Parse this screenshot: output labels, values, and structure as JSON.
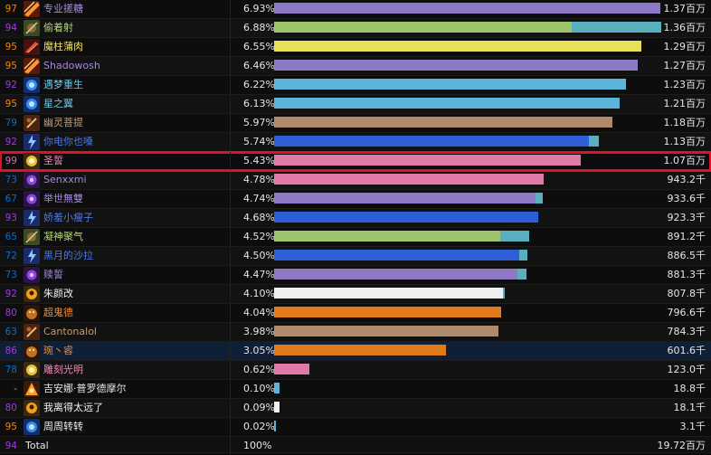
{
  "colors": {
    "rank_legendary": "#ff8000",
    "rank_epic": "#a335ee",
    "rank_rare": "#0070dd",
    "rank_astounding": "#e268a8",
    "rank_common": "#aaaaaa"
  },
  "rows": [
    {
      "rank": "97",
      "name": "专业搓糖",
      "pct": "6.93%",
      "value": "1.37百万",
      "bar_frac": 0.988,
      "bar2_frac": 0,
      "bar_color": "#8d79c4",
      "bar2_color": "",
      "name_color": "#a688e0",
      "rank_color": "#ff8000",
      "icon": "fire-mage-icon"
    },
    {
      "rank": "94",
      "name": "偷着射",
      "pct": "6.88%",
      "value": "1.36百万",
      "bar_frac": 0.762,
      "bar2_frac": 0.23,
      "bar_color": "#9dc46a",
      "bar2_color": "#5aafbf",
      "name_color": "#b6d57a",
      "rank_color": "#a335ee",
      "icon": "hunter-icon"
    },
    {
      "rank": "95",
      "name": "魔柱蒲肉",
      "pct": "6.55%",
      "value": "1.29百万",
      "bar_frac": 0.94,
      "bar2_frac": 0,
      "bar_color": "#e6e05a",
      "bar2_color": "",
      "name_color": "#f0e060",
      "rank_color": "#ff8000",
      "icon": "rogue-icon"
    },
    {
      "rank": "95",
      "name": "Shadowosh",
      "pct": "6.46%",
      "value": "1.27百万",
      "bar_frac": 0.93,
      "bar2_frac": 0,
      "bar_color": "#8d79c4",
      "bar2_color": "",
      "name_color": "#a688e0",
      "rank_color": "#ff8000",
      "icon": "fire-mage-icon"
    },
    {
      "rank": "92",
      "name": "遇梦重生",
      "pct": "6.22%",
      "value": "1.23百万",
      "bar_frac": 0.9,
      "bar2_frac": 0,
      "bar_color": "#5ab5d8",
      "bar2_color": "",
      "name_color": "#6cc6e6",
      "rank_color": "#a335ee",
      "icon": "frost-mage-icon"
    },
    {
      "rank": "95",
      "name": "星之翼",
      "pct": "6.13%",
      "value": "1.21百万",
      "bar_frac": 0.885,
      "bar2_frac": 0,
      "bar_color": "#5ab5d8",
      "bar2_color": "",
      "name_color": "#6cc6e6",
      "rank_color": "#ff8000",
      "icon": "frost-mage-icon"
    },
    {
      "rank": "79",
      "name": "幽灵菩提",
      "pct": "5.97%",
      "value": "1.18百万",
      "bar_frac": 0.865,
      "bar2_frac": 0,
      "bar_color": "#b08a6a",
      "bar2_color": "",
      "name_color": "#c69b6d",
      "rank_color": "#0070dd",
      "icon": "warrior-icon"
    },
    {
      "rank": "92",
      "name": "你电你也嗓",
      "pct": "5.74%",
      "value": "1.13百万",
      "bar_frac": 0.805,
      "bar2_frac": 0.025,
      "bar_color": "#2f5fd6",
      "bar2_color": "#5aafbf",
      "name_color": "#4a78e8",
      "rank_color": "#a335ee",
      "icon": "shaman-icon"
    },
    {
      "rank": "99",
      "name": "圣誓",
      "pct": "5.43%",
      "value": "1.07百万",
      "bar_frac": 0.785,
      "bar2_frac": 0,
      "bar_color": "#e07aa8",
      "bar2_color": "",
      "name_color": "#f08cb8",
      "rank_color": "#e268a8",
      "icon": "paladin-icon"
    },
    {
      "rank": "73",
      "name": "Senxxmi",
      "pct": "4.78%",
      "value": "943.2千",
      "bar_frac": 0.69,
      "bar2_frac": 0,
      "bar_color": "#e07aa8",
      "bar2_color": "",
      "name_color": "#a688e0",
      "rank_color": "#0070dd",
      "icon": "warlock-icon"
    },
    {
      "rank": "67",
      "name": "举世無雙",
      "pct": "4.74%",
      "value": "933.6千",
      "bar_frac": 0.668,
      "bar2_frac": 0.018,
      "bar_color": "#8d79c4",
      "bar2_color": "#5aafbf",
      "name_color": "#a688e0",
      "rank_color": "#0070dd",
      "icon": "warlock-icon"
    },
    {
      "rank": "93",
      "name": "娇羞小瘦子",
      "pct": "4.68%",
      "value": "923.3千",
      "bar_frac": 0.675,
      "bar2_frac": 0,
      "bar_color": "#2f5fd6",
      "bar2_color": "",
      "name_color": "#4a78e8",
      "rank_color": "#a335ee",
      "icon": "shaman-icon"
    },
    {
      "rank": "65",
      "name": "凝神聚气",
      "pct": "4.52%",
      "value": "891.2千",
      "bar_frac": 0.578,
      "bar2_frac": 0.075,
      "bar_color": "#9dc46a",
      "bar2_color": "#5aafbf",
      "name_color": "#b6d57a",
      "rank_color": "#0070dd",
      "icon": "hunter-icon"
    },
    {
      "rank": "72",
      "name": "黑月的沙拉",
      "pct": "4.50%",
      "value": "886.5千",
      "bar_frac": 0.628,
      "bar2_frac": 0.02,
      "bar_color": "#2f5fd6",
      "bar2_color": "#5aafbf",
      "name_color": "#4a78e8",
      "rank_color": "#0070dd",
      "icon": "shaman-icon"
    },
    {
      "rank": "73",
      "name": "赎誓",
      "pct": "4.47%",
      "value": "881.3千",
      "bar_frac": 0.622,
      "bar2_frac": 0.022,
      "bar_color": "#8d79c4",
      "bar2_color": "#5aafbf",
      "name_color": "#a688e0",
      "rank_color": "#0070dd",
      "icon": "warlock-icon"
    },
    {
      "rank": "92",
      "name": "朱颜改",
      "pct": "4.10%",
      "value": "807.8千",
      "bar_frac": 0.585,
      "bar2_frac": 0.005,
      "bar_color": "#f0f0f0",
      "bar2_color": "#5aafbf",
      "name_color": "#f0f0f0",
      "rank_color": "#a335ee",
      "icon": "priest-icon"
    },
    {
      "rank": "80",
      "name": "超鬼德",
      "pct": "4.04%",
      "value": "796.6千",
      "bar_frac": 0.58,
      "bar2_frac": 0,
      "bar_color": "#e07a1a",
      "bar2_color": "",
      "name_color": "#ff8a2a",
      "rank_color": "#a335ee",
      "icon": "druid-icon"
    },
    {
      "rank": "63",
      "name": "Cantonalol",
      "pct": "3.98%",
      "value": "784.3千",
      "bar_frac": 0.575,
      "bar2_frac": 0,
      "bar_color": "#b08a6a",
      "bar2_color": "",
      "name_color": "#c69b6d",
      "rank_color": "#0070dd",
      "icon": "warrior-icon"
    },
    {
      "rank": "86",
      "name": "琬丶䜭",
      "pct": "3.05%",
      "value": "601.6千",
      "bar_frac": 0.44,
      "bar2_frac": 0,
      "bar_color": "#e07a1a",
      "bar2_color": "",
      "name_color": "#ff8a2a",
      "rank_color": "#a335ee",
      "icon": "druid-icon"
    },
    {
      "rank": "78",
      "name": "雕刻光明",
      "pct": "0.62%",
      "value": "123.0千",
      "bar_frac": 0.09,
      "bar2_frac": 0,
      "bar_color": "#e07aa8",
      "bar2_color": "",
      "name_color": "#f08cb8",
      "rank_color": "#0070dd",
      "icon": "paladin-icon"
    },
    {
      "rank": "-",
      "name": "吉安娜·普罗德摩尔",
      "pct": "0.10%",
      "value": "18.8千",
      "bar_frac": 0.014,
      "bar2_frac": 0,
      "bar_color": "#5ab5d8",
      "bar2_color": "",
      "name_color": "#e6e6e6",
      "rank_color": "#aaaaaa",
      "icon": "jaina-icon"
    },
    {
      "rank": "80",
      "name": "我离得太远了",
      "pct": "0.09%",
      "value": "18.1千",
      "bar_frac": 0.013,
      "bar2_frac": 0,
      "bar_color": "#f0f0f0",
      "bar2_color": "",
      "name_color": "#f0f0f0",
      "rank_color": "#a335ee",
      "icon": "priest-icon"
    },
    {
      "rank": "95",
      "name": "周周转转",
      "pct": "0.02%",
      "value": "3.1千",
      "bar_frac": 0.004,
      "bar2_frac": 0,
      "bar_color": "#5ab5d8",
      "bar2_color": "",
      "name_color": "#f0f0f0",
      "rank_color": "#ff8000",
      "icon": "frost-mage-icon"
    }
  ],
  "total": {
    "rank": "94",
    "label": "Total",
    "pct": "100%",
    "value": "19.72百万",
    "rank_color": "#a335ee"
  },
  "highlighted_row_index": 18,
  "selected_row_index": 8
}
